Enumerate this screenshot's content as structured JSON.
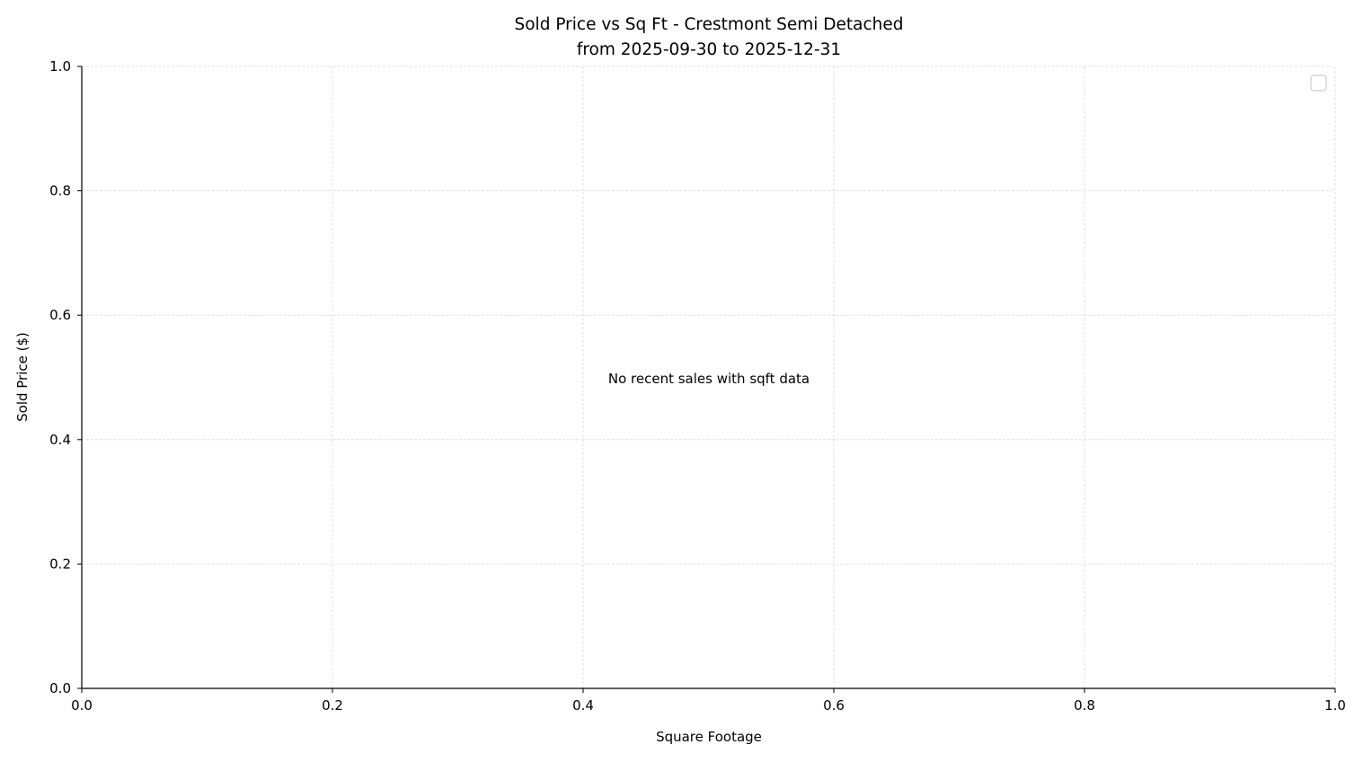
{
  "chart_data": {
    "type": "scatter",
    "title": "Sold Price vs Sq Ft - Crestmont Semi Detached",
    "subtitle": "from 2025-09-30 to 2025-12-31",
    "xlabel": "Square Footage",
    "ylabel": "Sold Price ($)",
    "xlim": [
      0,
      1
    ],
    "ylim": [
      0,
      1
    ],
    "xticks": [
      "0.0",
      "0.2",
      "0.4",
      "0.6",
      "0.8",
      "1.0"
    ],
    "yticks": [
      "0.0",
      "0.2",
      "0.4",
      "0.6",
      "0.8",
      "1.0"
    ],
    "grid": true,
    "legend": "top-right",
    "legend_entries": [],
    "series": [],
    "annotation": "No recent sales with sqft data",
    "colors": {
      "grid": "#d9d9d9",
      "axis": "#000000",
      "legend_border": "#cccccc"
    }
  }
}
